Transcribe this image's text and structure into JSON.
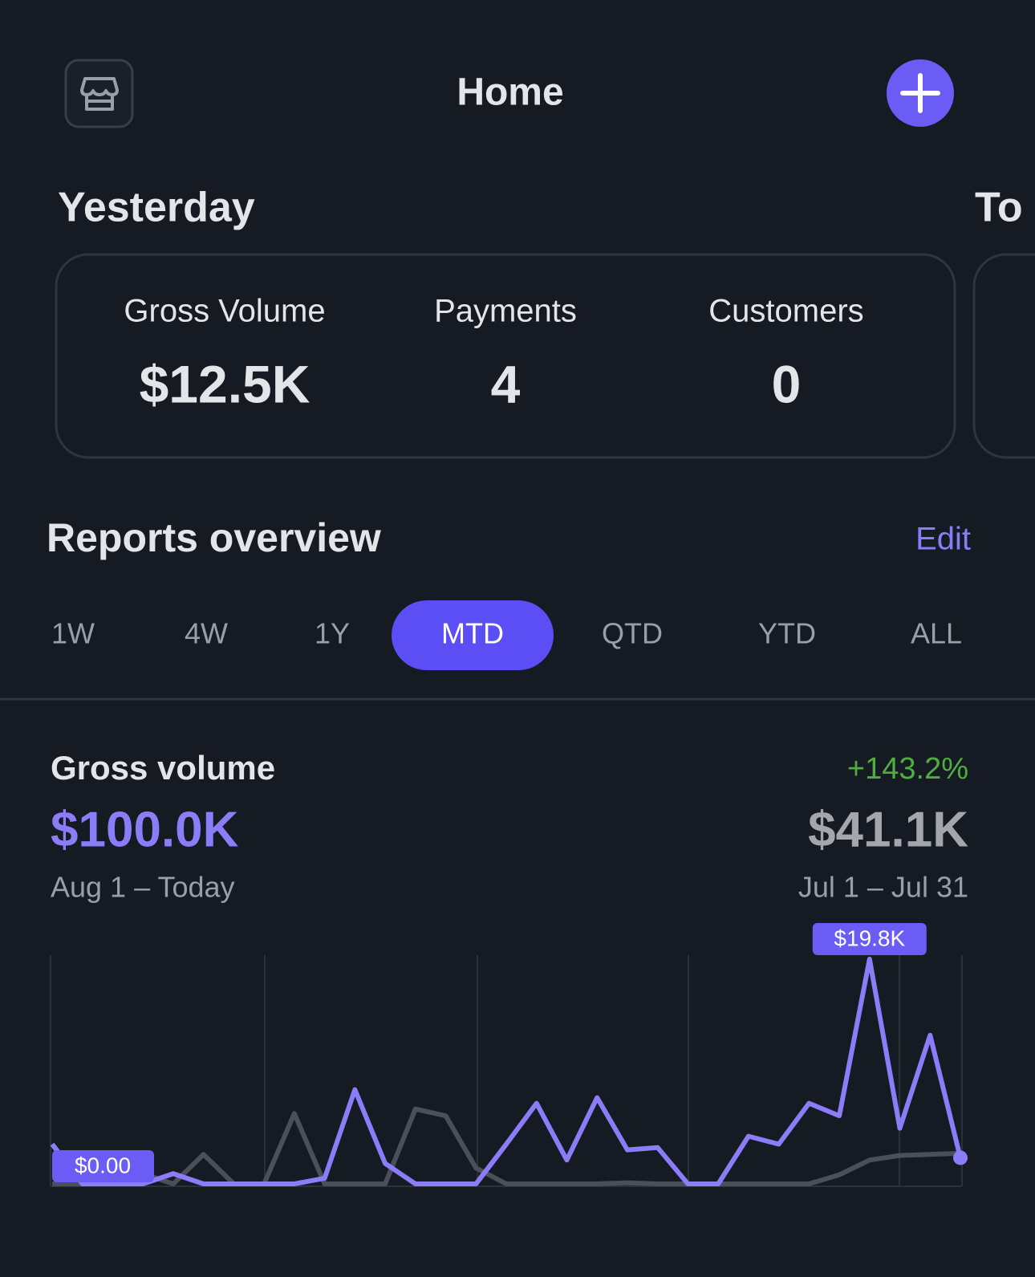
{
  "header": {
    "title": "Home"
  },
  "yesterday": {
    "title": "Yesterday",
    "metrics": [
      {
        "label": "Gross Volume",
        "value": "$12.5K"
      },
      {
        "label": "Payments",
        "value": "4"
      },
      {
        "label": "Customers",
        "value": "0"
      }
    ]
  },
  "next_card_title": "To",
  "reports": {
    "title": "Reports overview",
    "edit": "Edit",
    "ranges": [
      "1W",
      "4W",
      "1Y",
      "MTD",
      "QTD",
      "YTD",
      "ALL"
    ],
    "selected_range": 3
  },
  "gross": {
    "title": "Gross volume",
    "change": "+143.2%",
    "current_value": "$100.0K",
    "current_period": "Aug 1 – Today",
    "previous_value": "$41.1K",
    "previous_period": "Jul 1 – Jul 31"
  },
  "chart_data": {
    "type": "line",
    "series": [
      {
        "color": "#4a4f59",
        "values": [
          0,
          0,
          200,
          900,
          0,
          2600,
          0,
          0,
          6200,
          0,
          0,
          0,
          6600,
          6000,
          1400,
          0,
          0,
          0,
          0,
          100,
          0,
          0,
          0,
          0,
          0,
          0,
          800,
          2100,
          2500,
          2600,
          2700
        ]
      },
      {
        "color": "#8b7cf8",
        "values": [
          3500,
          0,
          0,
          0,
          900,
          0,
          0,
          0,
          0,
          500,
          8300,
          1800,
          0,
          0,
          0,
          3500,
          7100,
          2100,
          7600,
          3000,
          3200,
          0,
          0,
          4200,
          3500,
          7100,
          6000,
          19800,
          4900,
          13100,
          2300
        ]
      }
    ],
    "annotations": [
      {
        "value": 0,
        "label": "$0.00"
      },
      {
        "value": 19800,
        "label": "$19.8K"
      }
    ]
  }
}
